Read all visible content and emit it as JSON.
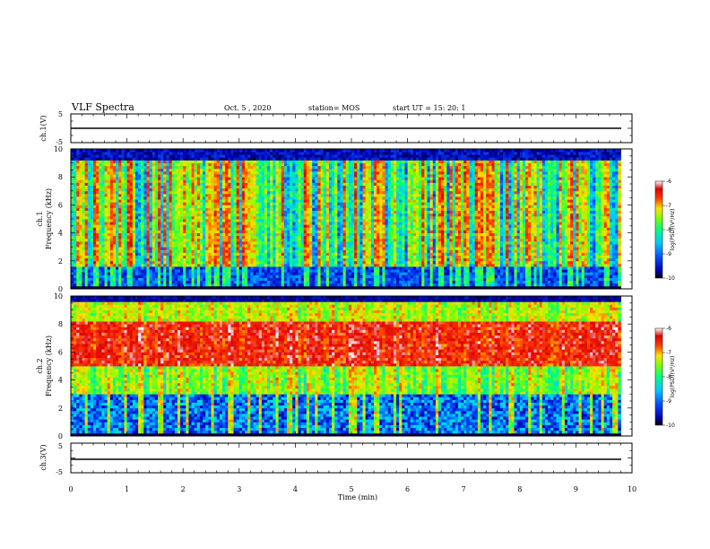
{
  "header": {
    "title": "VLF Spectra",
    "date": "Oct. 5 , 2020",
    "station": "station= MOS",
    "start": "start  UT =   15: 20: 1"
  },
  "chart_data": [
    {
      "type": "line",
      "name": "ch1-waveform",
      "ylabel": "ch.1(V)",
      "yticklabels": [
        "5",
        "-5"
      ],
      "ylim": [
        -5,
        5
      ],
      "xlim": [
        0,
        10
      ],
      "x": [
        0,
        9.8
      ],
      "y": [
        0,
        0
      ]
    },
    {
      "type": "heatmap",
      "name": "ch1-spectrogram",
      "ylabel": "ch.1\nFrequency (kHz)",
      "ylim": [
        0,
        10
      ],
      "xlim": [
        0,
        10
      ],
      "data_extent_x": [
        0,
        9.8
      ],
      "yticks": [
        0,
        2,
        4,
        6,
        8,
        10
      ],
      "colorbar": {
        "label": "log(PSD)(V²/Hz)",
        "range": [
          -10,
          -6
        ],
        "ticks": [
          "-6",
          "-7",
          "-8",
          "-9",
          "-10"
        ]
      }
    },
    {
      "type": "heatmap",
      "name": "ch2-spectrogram",
      "ylabel": "ch.2\nFrequency (kHz)",
      "ylim": [
        0,
        10
      ],
      "xlim": [
        0,
        10
      ],
      "data_extent_x": [
        0,
        9.8
      ],
      "yticks": [
        0,
        2,
        4,
        6,
        8,
        10
      ],
      "colorbar": {
        "label": "log(PSD)(V²/Hz)",
        "range": [
          -10,
          -6
        ],
        "ticks": [
          "-6",
          "-7",
          "-8",
          "-9",
          "-10"
        ]
      }
    },
    {
      "type": "line",
      "name": "ch3-waveform",
      "ylabel": "ch.3(V)",
      "yticklabels": [
        "5",
        "-5"
      ],
      "ylim": [
        -5,
        5
      ],
      "xlim": [
        0,
        10
      ],
      "x": [
        0,
        9.8
      ],
      "y": [
        0,
        0
      ]
    }
  ],
  "xaxis": {
    "label": "Time (min)",
    "ticks": [
      "0",
      "1",
      "2",
      "3",
      "4",
      "5",
      "6",
      "7",
      "8",
      "9",
      "10"
    ]
  },
  "colors": {
    "colormap": [
      "#000000",
      "#0000b4",
      "#0050ff",
      "#00c8ff",
      "#00ff80",
      "#80ff00",
      "#ffe000",
      "#ff4000",
      "#e00000",
      "#ffffff"
    ]
  }
}
